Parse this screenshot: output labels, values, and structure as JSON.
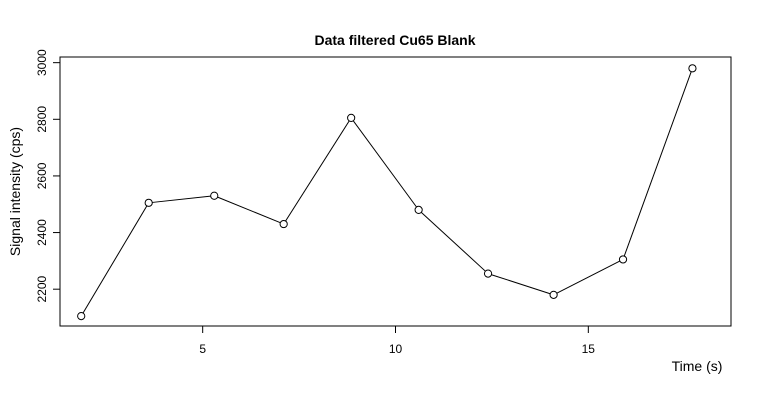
{
  "chart_data": {
    "type": "line",
    "title": "Data filtered Cu65 Blank",
    "xlabel": "Time (s)",
    "ylabel": "Signal intensity (cps)",
    "xlim": [
      1.3,
      18.7
    ],
    "ylim": [
      2070,
      3020
    ],
    "x_ticks": [
      5,
      10,
      15
    ],
    "y_ticks": [
      2200,
      2400,
      2600,
      2800,
      3000
    ],
    "grid": false,
    "series": [
      {
        "x": [
          1.85,
          3.6,
          5.3,
          7.1,
          8.85,
          10.6,
          12.4,
          14.1,
          15.9,
          17.7
        ],
        "y": [
          2105,
          2505,
          2530,
          2430,
          2805,
          2480,
          2255,
          2180,
          2305,
          2980
        ]
      }
    ]
  }
}
